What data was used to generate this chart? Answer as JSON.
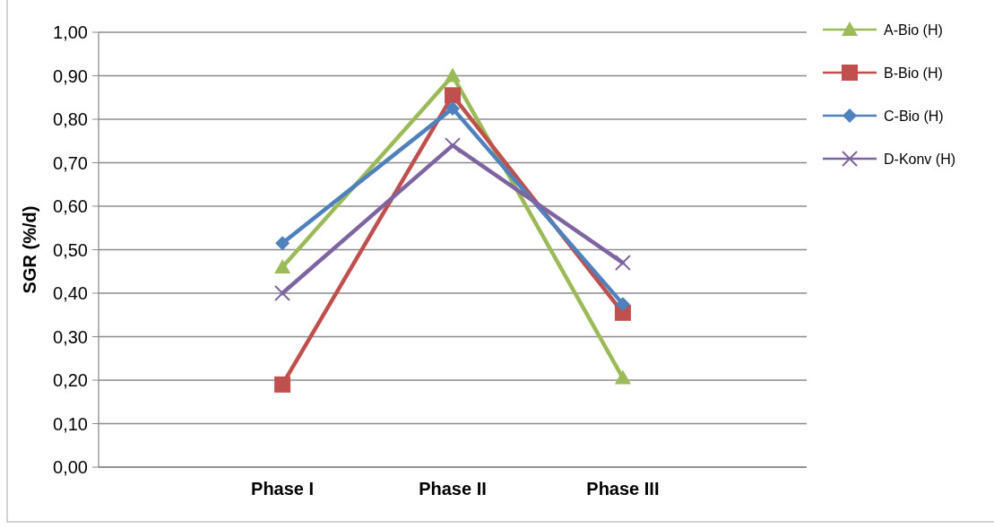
{
  "chart_data": {
    "type": "line",
    "ylabel": "SGR (%/d)",
    "categories": [
      "Phase I",
      "Phase II",
      "Phase III"
    ],
    "series": [
      {
        "name": "A-Bio (H)",
        "color": "#9bbb59",
        "marker": "triangle",
        "values": [
          0.46,
          0.9,
          0.205
        ]
      },
      {
        "name": "B-Bio (H)",
        "color": "#c0504d",
        "marker": "square",
        "values": [
          0.19,
          0.855,
          0.355
        ]
      },
      {
        "name": "C-Bio (H)",
        "color": "#4f81bd",
        "marker": "diamond",
        "values": [
          0.515,
          0.825,
          0.375
        ]
      },
      {
        "name": "D-Konv (H)",
        "color": "#8064a2",
        "marker": "cross",
        "values": [
          0.4,
          0.74,
          0.47
        ]
      }
    ],
    "ylim": [
      0,
      1
    ],
    "yticks": [
      {
        "value": 0,
        "label": "0,00"
      },
      {
        "value": 0.1,
        "label": "0,10"
      },
      {
        "value": 0.2,
        "label": "0,20"
      },
      {
        "value": 0.3,
        "label": "0,30"
      },
      {
        "value": 0.4,
        "label": "0,40"
      },
      {
        "value": 0.5,
        "label": "0,50"
      },
      {
        "value": 0.6,
        "label": "0,60"
      },
      {
        "value": 0.7,
        "label": "0,70"
      },
      {
        "value": 0.8,
        "label": "0,80"
      },
      {
        "value": 0.9,
        "label": "0,90"
      },
      {
        "value": 1,
        "label": "1,00"
      }
    ],
    "grid": "y",
    "legend": "right",
    "line_style": "solid"
  }
}
